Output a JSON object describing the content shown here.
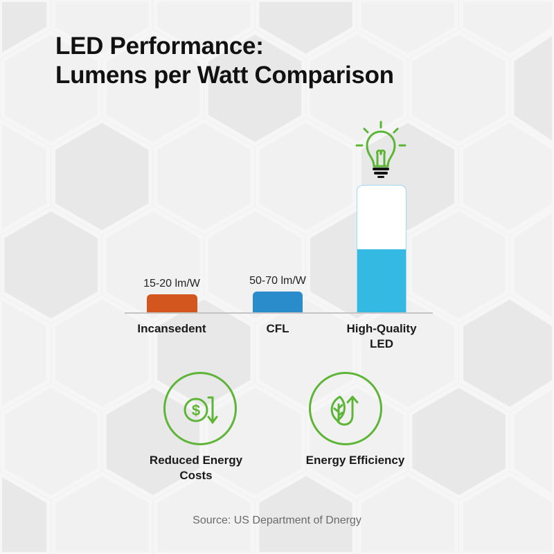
{
  "title_lines": [
    "LED Performance:",
    "Lumens per Watt Comparison"
  ],
  "chart_data": {
    "type": "bar",
    "title": "LED Performance: Lumens per Watt Comparison",
    "categories": [
      "Incansedent",
      "CFL",
      "High-Quality LED"
    ],
    "value_labels": [
      "15-20 lm/W",
      "50-70 lm/W",
      ""
    ],
    "colors": [
      "#d4561f",
      "#2a8ccb",
      "#33b9e2"
    ],
    "led_fill_level": 0.5,
    "led_icon": "lightbulb-icon"
  },
  "benefits": [
    {
      "label_lines": [
        "Reduced Energy",
        "Costs"
      ],
      "icon": "dollar-down-arrow-icon"
    },
    {
      "label_lines": [
        "Energy Efficiency"
      ],
      "icon": "leaf-up-arrow-icon"
    }
  ],
  "source": "Source: US Department of Dnergy",
  "accent_color": "#5db536"
}
